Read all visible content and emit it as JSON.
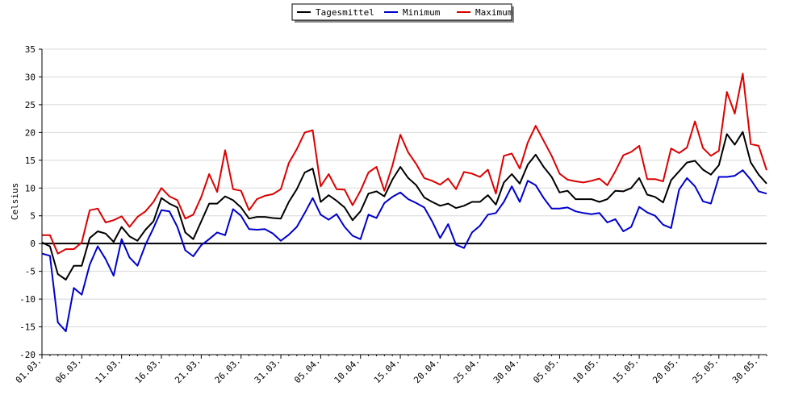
{
  "chart_data": {
    "type": "line",
    "title": "",
    "xlabel": "",
    "ylabel": "Celsius",
    "ylim": [
      -20,
      35
    ],
    "yticks": [
      -20,
      -15,
      -10,
      -5,
      0,
      5,
      10,
      15,
      20,
      25,
      30,
      35
    ],
    "grid": true,
    "legend_position": "top-center",
    "x": [
      "01.03.",
      "02.03.",
      "03.03.",
      "04.03.",
      "05.03.",
      "06.03.",
      "07.03.",
      "08.03.",
      "09.03.",
      "10.03.",
      "11.03.",
      "12.03.",
      "13.03.",
      "14.03.",
      "15.03.",
      "16.03.",
      "17.03.",
      "18.03.",
      "19.03.",
      "20.03.",
      "21.03.",
      "22.03.",
      "23.03.",
      "24.03.",
      "25.03.",
      "26.03.",
      "27.03.",
      "28.03.",
      "29.03.",
      "30.03.",
      "31.03.",
      "01.04.",
      "02.04.",
      "03.04.",
      "04.04.",
      "05.04.",
      "06.04.",
      "07.04.",
      "08.04.",
      "09.04.",
      "10.04.",
      "11.04.",
      "12.04.",
      "13.04.",
      "14.04.",
      "15.04.",
      "16.04.",
      "17.04.",
      "18.04.",
      "19.04.",
      "20.04.",
      "21.04.",
      "22.04.",
      "23.04.",
      "24.04.",
      "25.04.",
      "26.04.",
      "27.04.",
      "28.04.",
      "29.04.",
      "30.04.",
      "01.05.",
      "02.05.",
      "03.05.",
      "04.05.",
      "05.05.",
      "06.05.",
      "07.05.",
      "08.05.",
      "09.05.",
      "10.05.",
      "11.05.",
      "12.05.",
      "13.05.",
      "14.05.",
      "15.05.",
      "16.05.",
      "17.05.",
      "18.05.",
      "19.05.",
      "20.05.",
      "21.05.",
      "22.05.",
      "23.05.",
      "24.05.",
      "25.05.",
      "26.05.",
      "27.05.",
      "28.05.",
      "29.05.",
      "30.05.",
      "31.05."
    ],
    "xtick_labels": [
      "01.03.",
      "06.03.",
      "11.03.",
      "16.03.",
      "21.03.",
      "26.03.",
      "31.03.",
      "05.04.",
      "10.04.",
      "15.04.",
      "20.04.",
      "25.04.",
      "30.04.",
      "05.05.",
      "10.05.",
      "15.05.",
      "20.05.",
      "25.05.",
      "30.05."
    ],
    "series": [
      {
        "name": "Tagesmittel",
        "color": "#000000",
        "values": [
          0.2,
          -0.5,
          -5.5,
          -6.5,
          -4.0,
          -4.0,
          1.0,
          2.2,
          1.8,
          0.3,
          3.0,
          1.3,
          0.5,
          2.5,
          4.0,
          8.2,
          7.2,
          6.5,
          2.0,
          0.8,
          4.0,
          7.2,
          7.2,
          8.5,
          7.8,
          6.5,
          4.5,
          4.8,
          4.8,
          4.6,
          4.5,
          7.5,
          9.8,
          12.8,
          13.5,
          7.5,
          8.7,
          7.7,
          6.5,
          4.2,
          5.8,
          9.0,
          9.4,
          8.5,
          11.5,
          13.8,
          11.8,
          10.5,
          8.3,
          7.5,
          6.8,
          7.2,
          6.4,
          6.8,
          7.5,
          7.5,
          8.7,
          7.0,
          11.0,
          12.5,
          10.8,
          14.2,
          16.0,
          13.8,
          12.0,
          9.2,
          9.5,
          8.0,
          8.0,
          8.0,
          7.5,
          8.0,
          9.5,
          9.4,
          10.0,
          11.8,
          8.8,
          8.4,
          7.4,
          11.4,
          13.0,
          14.6,
          14.9,
          13.3,
          12.4,
          14.1,
          19.7,
          17.8,
          20.1,
          14.6,
          12.4,
          10.8
        ]
      },
      {
        "name": "Minimum",
        "color": "#0000cc",
        "values": [
          -1.8,
          -2.2,
          -14.2,
          -15.8,
          -8.0,
          -9.2,
          -3.8,
          -0.5,
          -2.8,
          -5.8,
          0.8,
          -2.5,
          -4.0,
          -0.2,
          2.8,
          6.0,
          5.8,
          3.0,
          -1.2,
          -2.3,
          -0.3,
          0.8,
          2.0,
          1.5,
          6.2,
          5.0,
          2.6,
          2.5,
          2.6,
          1.8,
          0.5,
          1.6,
          3.0,
          5.5,
          8.2,
          5.2,
          4.3,
          5.3,
          3.0,
          1.4,
          0.8,
          5.2,
          4.6,
          7.3,
          8.4,
          9.2,
          8.0,
          7.3,
          6.5,
          4.0,
          1.0,
          3.5,
          -0.2,
          -0.8,
          2.0,
          3.2,
          5.2,
          5.5,
          7.5,
          10.3,
          7.5,
          11.3,
          10.5,
          8.2,
          6.3,
          6.3,
          6.5,
          5.8,
          5.5,
          5.3,
          5.5,
          3.8,
          4.4,
          2.2,
          3.0,
          6.6,
          5.6,
          5.0,
          3.4,
          2.8,
          9.7,
          11.8,
          10.3,
          7.6,
          7.2,
          12.0,
          12.0,
          12.2,
          13.2,
          11.5,
          9.4,
          9.0
        ]
      },
      {
        "name": "Maximum",
        "color": "#dd0000",
        "values": [
          1.5,
          1.5,
          -1.8,
          -1.0,
          -1.0,
          0.2,
          6.0,
          6.3,
          3.8,
          4.2,
          4.9,
          3.0,
          4.8,
          5.8,
          7.5,
          10.0,
          8.5,
          7.8,
          4.5,
          5.2,
          8.4,
          12.5,
          9.3,
          16.8,
          9.8,
          9.5,
          6.0,
          8.0,
          8.6,
          8.9,
          9.8,
          14.5,
          17.0,
          20.0,
          20.4,
          10.3,
          12.5,
          9.8,
          9.7,
          6.9,
          9.5,
          12.8,
          13.8,
          9.5,
          14.0,
          19.6,
          16.4,
          14.3,
          11.8,
          11.3,
          10.6,
          11.7,
          9.8,
          12.9,
          12.6,
          12.0,
          13.3,
          9.0,
          15.8,
          16.2,
          13.5,
          18.2,
          21.2,
          18.5,
          15.8,
          12.6,
          11.5,
          11.2,
          11.0,
          11.3,
          11.7,
          10.5,
          13.0,
          15.9,
          16.5,
          17.6,
          11.6,
          11.6,
          11.2,
          17.1,
          16.3,
          17.3,
          22.0,
          17.2,
          15.8,
          16.7,
          27.3,
          23.4,
          30.6,
          17.9,
          17.6,
          13.2
        ]
      }
    ]
  }
}
